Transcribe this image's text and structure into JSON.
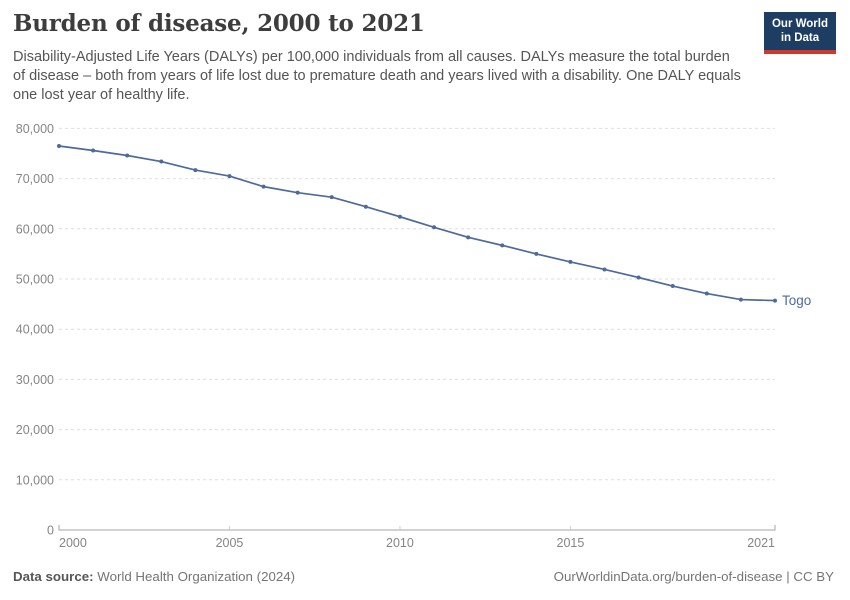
{
  "header": {
    "title": "Burden of disease, 2000 to 2021",
    "subtitle": "Disability-Adjusted Life Years (DALYs) per 100,000 individuals from all causes. DALYs measure the total burden of disease – both from years of life lost due to premature death and years lived with a disability. One DALY equals one lost year of healthy life."
  },
  "logo": {
    "line1": "Our World",
    "line2": "in Data",
    "bg_color": "#1d3d63",
    "accent_color": "#cf3a2e"
  },
  "chart_data": {
    "type": "line",
    "title": "Burden of disease, 2000 to 2021",
    "x": [
      2000,
      2001,
      2002,
      2003,
      2004,
      2005,
      2006,
      2007,
      2008,
      2009,
      2010,
      2011,
      2012,
      2013,
      2014,
      2015,
      2016,
      2017,
      2018,
      2019,
      2020,
      2021
    ],
    "series": [
      {
        "name": "Togo",
        "color": "#4d6a9d",
        "values": [
          76500,
          75600,
          74600,
          73400,
          71700,
          70500,
          68400,
          67200,
          66300,
          64400,
          62400,
          60300,
          58300,
          56700,
          55000,
          53400,
          51900,
          50300,
          48600,
          47100,
          45900,
          45700
        ]
      }
    ],
    "ylabel": "DALYs per 100,000 individuals",
    "ylim": [
      0,
      80000
    ],
    "yticks": [
      0,
      10000,
      20000,
      30000,
      40000,
      50000,
      60000,
      70000,
      80000
    ],
    "ytick_labels": [
      "0",
      "10,000",
      "20,000",
      "30,000",
      "40,000",
      "50,000",
      "60,000",
      "70,000",
      "80,000"
    ],
    "xticks": [
      2000,
      2005,
      2010,
      2015,
      2021
    ],
    "grid": "horizontal-dashed",
    "legend_position": "end-of-line-label",
    "entity_label": "Togo"
  },
  "footer": {
    "datasource_label": "Data source:",
    "datasource_value": " World Health Organization (2024)",
    "link": "OurWorldinData.org/burden-of-disease | CC BY"
  },
  "colors": {
    "line": "#4d6a9d",
    "gridline": "#dedede",
    "axis": "#a5a5a5",
    "tick_text": "#858585",
    "title_text": "#3d3d3d",
    "subtitle_text": "#555555"
  }
}
